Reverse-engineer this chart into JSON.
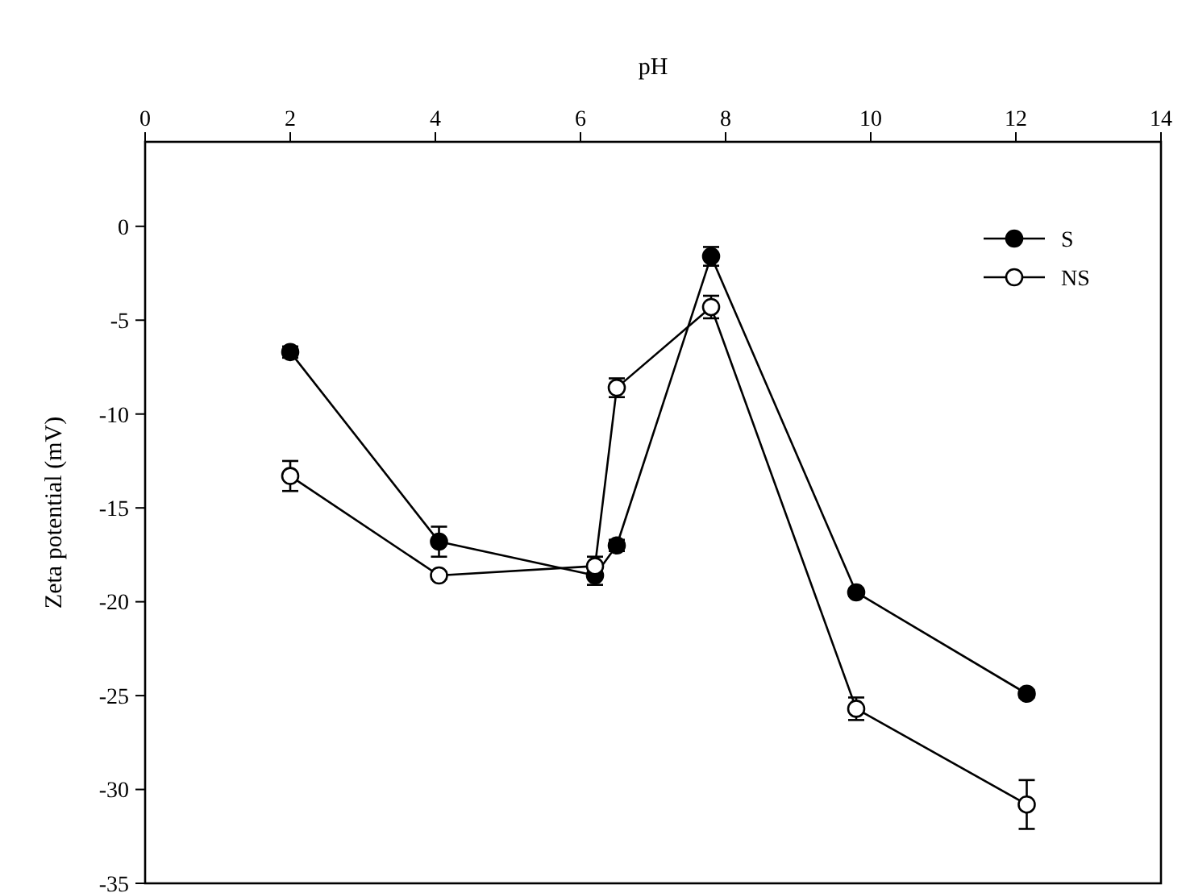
{
  "chart_data": {
    "type": "line",
    "xlabel": "pH",
    "ylabel": "Zeta potential (mV)",
    "x": [
      2,
      4.05,
      6.2,
      6.5,
      7.8,
      9.8,
      12.15
    ],
    "series": [
      {
        "name": "S",
        "color": "#000000",
        "marker": "circle",
        "values": [
          -6.7,
          -16.8,
          -18.6,
          -17.0,
          -1.6,
          -19.5,
          -24.9
        ],
        "errors": [
          0.3,
          0.8,
          0.5,
          0.3,
          0.5,
          0.2,
          0.2
        ]
      },
      {
        "name": "NS",
        "color": "#000000",
        "marker": "circle",
        "values": [
          -13.3,
          -18.6,
          -18.1,
          -8.6,
          -4.3,
          -25.7,
          -30.8
        ],
        "errors": [
          0.8,
          0.2,
          0.5,
          0.5,
          0.6,
          0.6,
          1.3
        ]
      }
    ],
    "xlim": [
      0,
      14
    ],
    "xticks": [
      0,
      2,
      4,
      6,
      8,
      10,
      12,
      14
    ],
    "ylim": [
      -35,
      4.5
    ],
    "yticks": [
      0,
      -5,
      -10,
      -15,
      -20,
      -25,
      -30,
      -35
    ],
    "grid": false,
    "legend": "top right",
    "line_style": "solid"
  }
}
